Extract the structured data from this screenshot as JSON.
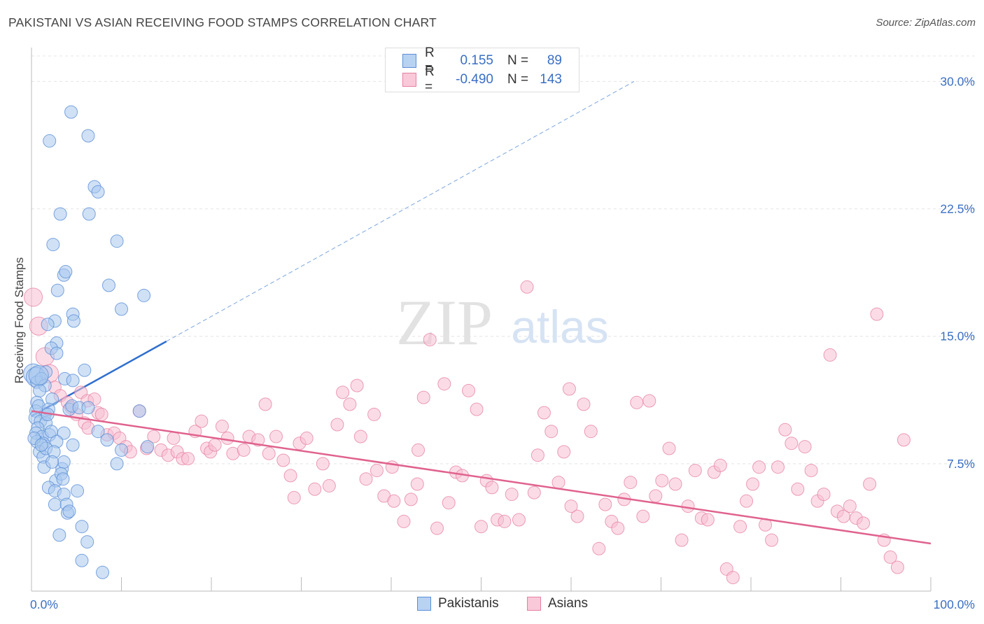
{
  "title": "PAKISTANI VS ASIAN RECEIVING FOOD STAMPS CORRELATION CHART",
  "source": "Source: ZipAtlas.com",
  "watermark": {
    "zip": "ZIP",
    "atlas": "atlas"
  },
  "colors": {
    "pakistani_fill": "#a9c8ef",
    "pakistani_stroke": "#5b8fd6",
    "pakistani_line": "#2f6fce",
    "asian_fill": "#f7bfd1",
    "asian_stroke": "#e67fa0",
    "asian_line": "#e0628e",
    "tick_label": "#3a6fc4",
    "grid": "#e4e4e4"
  },
  "legend": {
    "rows": [
      {
        "r_label": "R =",
        "r_value": "0.155",
        "n_label": "N =",
        "n_value": "89"
      },
      {
        "r_label": "R =",
        "r_value": "-0.490",
        "n_label": "N =",
        "n_value": "143"
      }
    ]
  },
  "bottom_legend": {
    "pakistani": "Pakistanis",
    "asian": "Asians"
  },
  "chart_data": {
    "type": "scatter",
    "title": "PAKISTANI VS ASIAN RECEIVING FOOD STAMPS CORRELATION CHART",
    "xlabel": "",
    "ylabel": "Receiving Food Stamps",
    "xlim": [
      0,
      100
    ],
    "ylim": [
      0,
      31.5
    ],
    "x_tick_labels": [
      "0.0%",
      "100.0%"
    ],
    "y_ticks": [
      7.5,
      15.0,
      22.5,
      30.0
    ],
    "y_tick_labels": [
      "7.5%",
      "15.0%",
      "22.5%",
      "30.0%"
    ],
    "grid": "horizontal dashed",
    "legend_position": "top-center",
    "series": [
      {
        "name": "Pakistanis",
        "r": 0.155,
        "n": 89,
        "trend": {
          "x": [
            0,
            15
          ],
          "y": [
            10.3,
            14.7
          ],
          "extended_to": {
            "x": 67,
            "y": 30.0
          }
        },
        "points": [
          [
            4.4,
            28.2
          ],
          [
            6.3,
            26.8
          ],
          [
            2.0,
            26.5
          ],
          [
            7.0,
            23.8
          ],
          [
            7.4,
            23.5
          ],
          [
            3.2,
            22.2
          ],
          [
            6.4,
            22.2
          ],
          [
            2.4,
            20.4
          ],
          [
            9.5,
            20.6
          ],
          [
            3.6,
            18.6
          ],
          [
            3.8,
            18.8
          ],
          [
            8.6,
            18.0
          ],
          [
            2.9,
            17.7
          ],
          [
            12.5,
            17.4
          ],
          [
            10.0,
            16.6
          ],
          [
            4.6,
            16.3
          ],
          [
            4.7,
            15.9
          ],
          [
            2.6,
            15.9
          ],
          [
            1.8,
            15.7
          ],
          [
            2.8,
            14.6
          ],
          [
            2.2,
            14.3
          ],
          [
            2.8,
            14.0
          ],
          [
            0.2,
            12.8
          ],
          [
            0.5,
            12.6
          ],
          [
            0.6,
            12.3
          ],
          [
            1.6,
            12.9
          ],
          [
            1.1,
            12.5
          ],
          [
            3.7,
            12.5
          ],
          [
            4.6,
            12.4
          ],
          [
            5.9,
            13.0
          ],
          [
            1.5,
            12.1
          ],
          [
            0.9,
            11.8
          ],
          [
            0.6,
            11.1
          ],
          [
            2.3,
            11.3
          ],
          [
            1.5,
            10.4
          ],
          [
            0.5,
            10.6
          ],
          [
            0.8,
            10.9
          ],
          [
            1.9,
            10.7
          ],
          [
            0.4,
            10.2
          ],
          [
            4.2,
            10.7
          ],
          [
            4.5,
            10.9
          ],
          [
            5.3,
            10.8
          ],
          [
            6.3,
            10.8
          ],
          [
            1.0,
            10.0
          ],
          [
            1.6,
            9.9
          ],
          [
            1.8,
            10.4
          ],
          [
            0.7,
            9.6
          ],
          [
            0.5,
            9.3
          ],
          [
            1.2,
            9.1
          ],
          [
            2.0,
            9.2
          ],
          [
            2.2,
            9.4
          ],
          [
            3.6,
            9.3
          ],
          [
            7.4,
            9.4
          ],
          [
            0.6,
            8.8
          ],
          [
            1.3,
            8.7
          ],
          [
            2.8,
            8.8
          ],
          [
            4.6,
            8.6
          ],
          [
            8.4,
            8.9
          ],
          [
            0.9,
            8.2
          ],
          [
            1.3,
            7.9
          ],
          [
            1.6,
            8.4
          ],
          [
            2.5,
            8.2
          ],
          [
            10.0,
            8.3
          ],
          [
            12.9,
            8.5
          ],
          [
            1.4,
            7.3
          ],
          [
            3.4,
            7.2
          ],
          [
            3.6,
            7.6
          ],
          [
            9.5,
            7.5
          ],
          [
            2.3,
            7.6
          ],
          [
            2.7,
            6.5
          ],
          [
            3.3,
            6.9
          ],
          [
            3.5,
            6.6
          ],
          [
            1.9,
            6.1
          ],
          [
            2.6,
            5.9
          ],
          [
            5.1,
            5.9
          ],
          [
            3.6,
            5.7
          ],
          [
            2.6,
            5.1
          ],
          [
            3.9,
            5.1
          ],
          [
            4.0,
            4.6
          ],
          [
            4.2,
            4.7
          ],
          [
            5.6,
            3.8
          ],
          [
            3.1,
            3.3
          ],
          [
            6.2,
            2.9
          ],
          [
            5.6,
            1.8
          ],
          [
            7.9,
            1.1
          ],
          [
            12.0,
            10.6
          ],
          [
            0.3,
            9.0
          ],
          [
            1.1,
            8.6
          ],
          [
            0.8,
            12.7
          ]
        ]
      },
      {
        "name": "Asians",
        "r": -0.49,
        "n": 143,
        "trend": {
          "x": [
            0,
            100
          ],
          "y": [
            10.6,
            2.8
          ]
        },
        "points": [
          [
            0.2,
            17.3
          ],
          [
            0.8,
            15.6
          ],
          [
            1.5,
            13.8
          ],
          [
            2.0,
            12.8
          ],
          [
            2.6,
            12.0
          ],
          [
            3.2,
            11.5
          ],
          [
            4.0,
            11.1
          ],
          [
            4.4,
            10.8
          ],
          [
            5.0,
            10.4
          ],
          [
            5.5,
            11.7
          ],
          [
            6.2,
            11.2
          ],
          [
            7.0,
            11.3
          ],
          [
            7.4,
            10.5
          ],
          [
            5.9,
            9.9
          ],
          [
            6.3,
            9.6
          ],
          [
            7.8,
            10.4
          ],
          [
            8.4,
            9.2
          ],
          [
            9.2,
            9.3
          ],
          [
            9.8,
            9.0
          ],
          [
            10.5,
            8.5
          ],
          [
            11.0,
            8.2
          ],
          [
            12.0,
            10.6
          ],
          [
            12.8,
            8.4
          ],
          [
            13.6,
            9.1
          ],
          [
            14.4,
            8.3
          ],
          [
            15.2,
            8.0
          ],
          [
            15.8,
            9.0
          ],
          [
            16.2,
            8.2
          ],
          [
            16.8,
            7.8
          ],
          [
            17.4,
            7.8
          ],
          [
            18.2,
            9.4
          ],
          [
            18.9,
            10.0
          ],
          [
            19.5,
            8.4
          ],
          [
            19.9,
            8.2
          ],
          [
            20.4,
            8.6
          ],
          [
            21.2,
            9.7
          ],
          [
            21.8,
            9.0
          ],
          [
            22.4,
            8.1
          ],
          [
            23.6,
            8.3
          ],
          [
            24.2,
            9.1
          ],
          [
            25.2,
            8.9
          ],
          [
            26.0,
            11.0
          ],
          [
            26.4,
            8.1
          ],
          [
            27.2,
            9.1
          ],
          [
            28.0,
            7.7
          ],
          [
            28.8,
            6.8
          ],
          [
            29.2,
            5.5
          ],
          [
            29.8,
            8.7
          ],
          [
            30.6,
            9.0
          ],
          [
            31.5,
            6.0
          ],
          [
            32.4,
            7.5
          ],
          [
            33.1,
            6.2
          ],
          [
            34.0,
            9.8
          ],
          [
            34.6,
            11.7
          ],
          [
            35.4,
            11.0
          ],
          [
            36.2,
            12.1
          ],
          [
            36.6,
            9.1
          ],
          [
            37.2,
            6.6
          ],
          [
            38.4,
            7.1
          ],
          [
            39.2,
            5.6
          ],
          [
            40.1,
            7.3
          ],
          [
            41.4,
            4.1
          ],
          [
            42.2,
            5.4
          ],
          [
            42.9,
            6.3
          ],
          [
            43.6,
            11.4
          ],
          [
            44.3,
            14.8
          ],
          [
            45.1,
            3.7
          ],
          [
            45.9,
            12.2
          ],
          [
            46.4,
            5.2
          ],
          [
            47.2,
            7.0
          ],
          [
            47.9,
            6.8
          ],
          [
            48.6,
            11.8
          ],
          [
            49.5,
            10.7
          ],
          [
            50.0,
            3.8
          ],
          [
            50.6,
            6.5
          ],
          [
            51.2,
            6.1
          ],
          [
            51.8,
            4.2
          ],
          [
            52.6,
            4.1
          ],
          [
            53.4,
            5.7
          ],
          [
            54.2,
            4.2
          ],
          [
            55.1,
            17.9
          ],
          [
            55.9,
            5.8
          ],
          [
            56.3,
            8.0
          ],
          [
            57.0,
            10.5
          ],
          [
            57.8,
            9.4
          ],
          [
            58.6,
            6.4
          ],
          [
            59.2,
            8.2
          ],
          [
            59.8,
            11.9
          ],
          [
            60.7,
            4.4
          ],
          [
            61.4,
            11.0
          ],
          [
            62.2,
            9.4
          ],
          [
            63.1,
            2.5
          ],
          [
            63.8,
            5.1
          ],
          [
            64.5,
            4.1
          ],
          [
            65.2,
            3.7
          ],
          [
            65.9,
            5.4
          ],
          [
            66.6,
            6.4
          ],
          [
            67.3,
            11.1
          ],
          [
            68.0,
            4.4
          ],
          [
            68.7,
            11.2
          ],
          [
            69.4,
            5.6
          ],
          [
            70.1,
            6.5
          ],
          [
            70.9,
            8.4
          ],
          [
            71.6,
            6.3
          ],
          [
            72.3,
            3.0
          ],
          [
            73.0,
            5.0
          ],
          [
            73.8,
            7.1
          ],
          [
            74.5,
            4.3
          ],
          [
            75.2,
            4.2
          ],
          [
            75.9,
            7.0
          ],
          [
            76.6,
            7.4
          ],
          [
            77.3,
            1.3
          ],
          [
            78.0,
            0.8
          ],
          [
            78.8,
            3.8
          ],
          [
            79.5,
            5.3
          ],
          [
            80.2,
            6.3
          ],
          [
            80.9,
            7.3
          ],
          [
            81.6,
            3.9
          ],
          [
            82.3,
            3.0
          ],
          [
            83.0,
            7.3
          ],
          [
            83.8,
            9.5
          ],
          [
            84.5,
            8.7
          ],
          [
            85.2,
            6.0
          ],
          [
            86.0,
            8.5
          ],
          [
            86.7,
            7.1
          ],
          [
            87.4,
            5.3
          ],
          [
            88.1,
            5.7
          ],
          [
            88.8,
            13.9
          ],
          [
            89.6,
            4.7
          ],
          [
            90.3,
            4.4
          ],
          [
            91.0,
            5.0
          ],
          [
            91.7,
            4.3
          ],
          [
            92.5,
            4.0
          ],
          [
            93.2,
            6.3
          ],
          [
            94.0,
            16.3
          ],
          [
            94.8,
            3.0
          ],
          [
            95.5,
            2.0
          ],
          [
            96.3,
            1.4
          ],
          [
            97.0,
            8.9
          ],
          [
            40.3,
            5.3
          ],
          [
            38.1,
            10.4
          ],
          [
            43.0,
            8.3
          ],
          [
            60.0,
            5.0
          ]
        ]
      }
    ]
  }
}
